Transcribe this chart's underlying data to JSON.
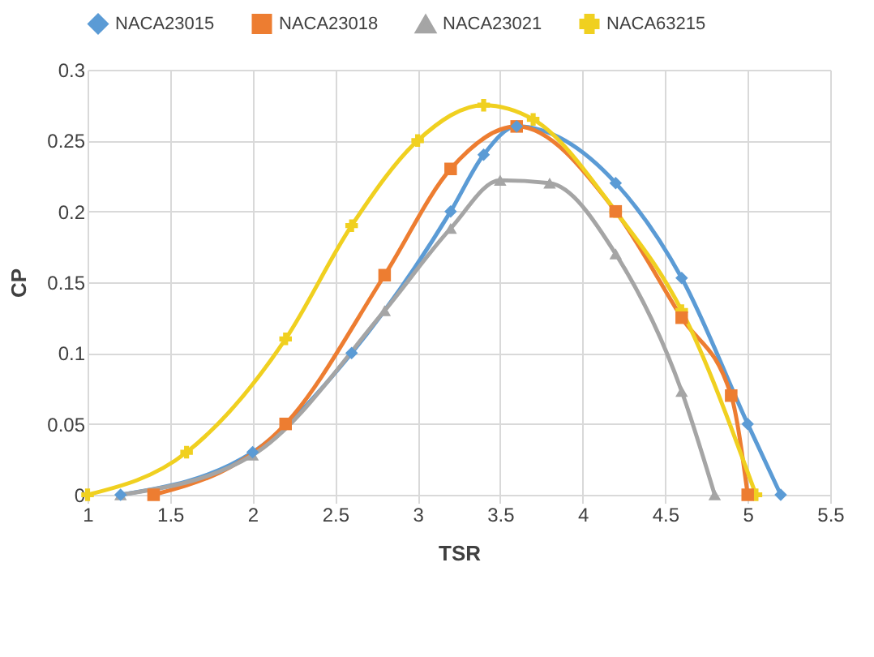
{
  "chart_data": {
    "type": "line",
    "xlabel": "TSR",
    "ylabel": "CP",
    "xlim": [
      1,
      5.5
    ],
    "ylim": [
      0,
      0.3
    ],
    "xticks": [
      1,
      1.5,
      2,
      2.5,
      3,
      3.5,
      4,
      4.5,
      5,
      5.5
    ],
    "yticks": [
      0,
      0.05,
      0.1,
      0.15,
      0.2,
      0.25,
      0.3
    ],
    "grid": true,
    "legend": "top",
    "line_style": "solid",
    "series": [
      {
        "name": "NACA23015",
        "color": "#5b9bd5",
        "marker": "diamond",
        "x": [
          1.2,
          2,
          2.6,
          3.2,
          3.4,
          3.6,
          4.2,
          4.6,
          5,
          5.2
        ],
        "values": [
          0,
          0.03,
          0.1,
          0.2,
          0.24,
          0.26,
          0.22,
          0.153,
          0.05,
          0
        ]
      },
      {
        "name": "NACA23018",
        "color": "#ed7d31",
        "marker": "square",
        "x": [
          1.4,
          2.2,
          2.8,
          3.2,
          3.6,
          4.2,
          4.6,
          4.9,
          5
        ],
        "values": [
          0,
          0.05,
          0.155,
          0.23,
          0.26,
          0.2,
          0.125,
          0.07,
          0
        ]
      },
      {
        "name": "NACA23021",
        "color": "#a5a5a5",
        "marker": "triangle",
        "x": [
          1.2,
          2,
          2.8,
          3.2,
          3.5,
          3.8,
          4.2,
          4.6,
          4.8
        ],
        "values": [
          0,
          0.028,
          0.13,
          0.188,
          0.222,
          0.22,
          0.17,
          0.073,
          0
        ]
      },
      {
        "name": "NACA63215",
        "color": "#f0d020",
        "marker": "cross",
        "x": [
          1,
          1.6,
          2.2,
          2.6,
          3,
          3.4,
          3.7,
          4.2,
          4.6,
          5.05
        ],
        "values": [
          0,
          0.03,
          0.11,
          0.19,
          0.25,
          0.275,
          0.265,
          0.2,
          0.13,
          0
        ]
      }
    ]
  }
}
